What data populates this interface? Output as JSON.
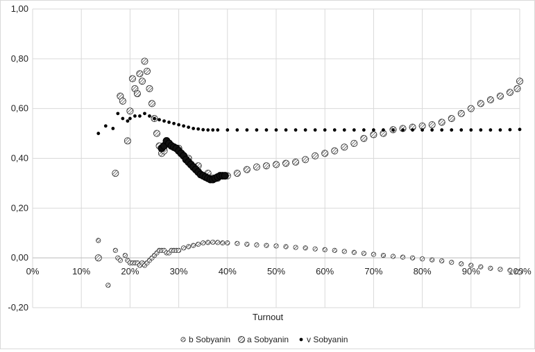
{
  "chart_data": {
    "type": "scatter",
    "title": "",
    "xlabel": "Turnout",
    "ylabel": "",
    "xlim": [
      0,
      1
    ],
    "ylim": [
      -0.2,
      1.0
    ],
    "x_ticks": [
      "0%",
      "10%",
      "20%",
      "30%",
      "40%",
      "50%",
      "60%",
      "70%",
      "80%",
      "90%",
      "100%"
    ],
    "y_ticks": [
      "-0,20",
      "0,00",
      "0,20",
      "0,40",
      "0,60",
      "0,80",
      "1,00"
    ],
    "grid": true,
    "legend_position": "bottom",
    "series": [
      {
        "name": "b Sobyanin",
        "marker": "small-hatched-circle",
        "points": [
          [
            0.135,
            0.07
          ],
          [
            0.155,
            -0.11
          ],
          [
            0.17,
            0.03
          ],
          [
            0.175,
            0.0
          ],
          [
            0.18,
            -0.01
          ],
          [
            0.19,
            0.01
          ],
          [
            0.195,
            -0.01
          ],
          [
            0.2,
            -0.02
          ],
          [
            0.205,
            -0.02
          ],
          [
            0.21,
            -0.02
          ],
          [
            0.215,
            -0.02
          ],
          [
            0.22,
            -0.03
          ],
          [
            0.225,
            -0.02
          ],
          [
            0.23,
            -0.03
          ],
          [
            0.235,
            -0.02
          ],
          [
            0.24,
            -0.01
          ],
          [
            0.245,
            0.0
          ],
          [
            0.25,
            0.01
          ],
          [
            0.255,
            0.02
          ],
          [
            0.26,
            0.03
          ],
          [
            0.265,
            0.03
          ],
          [
            0.27,
            0.03
          ],
          [
            0.275,
            0.02
          ],
          [
            0.28,
            0.02
          ],
          [
            0.285,
            0.03
          ],
          [
            0.29,
            0.03
          ],
          [
            0.295,
            0.03
          ],
          [
            0.3,
            0.03
          ],
          [
            0.31,
            0.04
          ],
          [
            0.32,
            0.045
          ],
          [
            0.33,
            0.05
          ],
          [
            0.34,
            0.055
          ],
          [
            0.35,
            0.06
          ],
          [
            0.36,
            0.062
          ],
          [
            0.37,
            0.063
          ],
          [
            0.38,
            0.062
          ],
          [
            0.39,
            0.06
          ],
          [
            0.4,
            0.06
          ],
          [
            0.42,
            0.058
          ],
          [
            0.44,
            0.055
          ],
          [
            0.46,
            0.052
          ],
          [
            0.48,
            0.05
          ],
          [
            0.5,
            0.048
          ],
          [
            0.52,
            0.045
          ],
          [
            0.54,
            0.042
          ],
          [
            0.56,
            0.04
          ],
          [
            0.58,
            0.036
          ],
          [
            0.6,
            0.033
          ],
          [
            0.62,
            0.03
          ],
          [
            0.64,
            0.026
          ],
          [
            0.66,
            0.022
          ],
          [
            0.68,
            0.018
          ],
          [
            0.7,
            0.014
          ],
          [
            0.72,
            0.01
          ],
          [
            0.74,
            0.006
          ],
          [
            0.76,
            0.003
          ],
          [
            0.78,
            0.0
          ],
          [
            0.8,
            -0.004
          ],
          [
            0.82,
            -0.008
          ],
          [
            0.84,
            -0.012
          ],
          [
            0.86,
            -0.018
          ],
          [
            0.88,
            -0.024
          ],
          [
            0.9,
            -0.03
          ],
          [
            0.92,
            -0.036
          ],
          [
            0.94,
            -0.042
          ],
          [
            0.96,
            -0.046
          ],
          [
            0.98,
            -0.05
          ],
          [
            0.995,
            -0.055
          ],
          [
            1.0,
            -0.058
          ]
        ]
      },
      {
        "name": "a Sobyanin",
        "marker": "large-hatched-circle",
        "points": [
          [
            0.135,
            0.0
          ],
          [
            0.17,
            0.34
          ],
          [
            0.18,
            0.65
          ],
          [
            0.185,
            0.63
          ],
          [
            0.195,
            0.47
          ],
          [
            0.2,
            0.59
          ],
          [
            0.205,
            0.72
          ],
          [
            0.21,
            0.68
          ],
          [
            0.215,
            0.66
          ],
          [
            0.22,
            0.74
          ],
          [
            0.225,
            0.71
          ],
          [
            0.23,
            0.79
          ],
          [
            0.235,
            0.75
          ],
          [
            0.24,
            0.68
          ],
          [
            0.245,
            0.62
          ],
          [
            0.25,
            0.56
          ],
          [
            0.255,
            0.5
          ],
          [
            0.26,
            0.45
          ],
          [
            0.265,
            0.42
          ],
          [
            0.27,
            0.43
          ],
          [
            0.3,
            0.44
          ],
          [
            0.32,
            0.4
          ],
          [
            0.34,
            0.37
          ],
          [
            0.36,
            0.34
          ],
          [
            0.37,
            0.32
          ],
          [
            0.38,
            0.32
          ],
          [
            0.4,
            0.33
          ],
          [
            0.42,
            0.34
          ],
          [
            0.44,
            0.355
          ],
          [
            0.46,
            0.365
          ],
          [
            0.48,
            0.37
          ],
          [
            0.5,
            0.375
          ],
          [
            0.52,
            0.38
          ],
          [
            0.54,
            0.385
          ],
          [
            0.56,
            0.395
          ],
          [
            0.58,
            0.41
          ],
          [
            0.6,
            0.42
          ],
          [
            0.62,
            0.43
          ],
          [
            0.64,
            0.445
          ],
          [
            0.66,
            0.46
          ],
          [
            0.68,
            0.48
          ],
          [
            0.7,
            0.495
          ],
          [
            0.72,
            0.5
          ],
          [
            0.74,
            0.515
          ],
          [
            0.76,
            0.52
          ],
          [
            0.78,
            0.525
          ],
          [
            0.8,
            0.53
          ],
          [
            0.82,
            0.535
          ],
          [
            0.84,
            0.545
          ],
          [
            0.86,
            0.56
          ],
          [
            0.88,
            0.58
          ],
          [
            0.9,
            0.6
          ],
          [
            0.92,
            0.62
          ],
          [
            0.94,
            0.635
          ],
          [
            0.96,
            0.65
          ],
          [
            0.98,
            0.665
          ],
          [
            0.995,
            0.68
          ],
          [
            1.0,
            0.71
          ]
        ]
      },
      {
        "name": "v Sobyanin",
        "marker": "solid-dot",
        "points": [
          [
            0.135,
            0.5
          ],
          [
            0.15,
            0.53
          ],
          [
            0.165,
            0.52
          ],
          [
            0.175,
            0.58
          ],
          [
            0.185,
            0.56
          ],
          [
            0.195,
            0.55
          ],
          [
            0.2,
            0.56
          ],
          [
            0.21,
            0.57
          ],
          [
            0.22,
            0.57
          ],
          [
            0.23,
            0.58
          ],
          [
            0.24,
            0.57
          ],
          [
            0.25,
            0.56
          ],
          [
            0.26,
            0.555
          ],
          [
            0.27,
            0.55
          ],
          [
            0.28,
            0.545
          ],
          [
            0.29,
            0.54
          ],
          [
            0.3,
            0.535
          ],
          [
            0.31,
            0.53
          ],
          [
            0.32,
            0.525
          ],
          [
            0.33,
            0.52
          ],
          [
            0.34,
            0.518
          ],
          [
            0.35,
            0.515
          ],
          [
            0.36,
            0.514
          ],
          [
            0.37,
            0.514
          ],
          [
            0.38,
            0.514
          ],
          [
            0.4,
            0.514
          ],
          [
            0.42,
            0.514
          ],
          [
            0.44,
            0.514
          ],
          [
            0.46,
            0.514
          ],
          [
            0.48,
            0.514
          ],
          [
            0.5,
            0.514
          ],
          [
            0.52,
            0.514
          ],
          [
            0.54,
            0.514
          ],
          [
            0.56,
            0.514
          ],
          [
            0.58,
            0.514
          ],
          [
            0.6,
            0.514
          ],
          [
            0.62,
            0.514
          ],
          [
            0.64,
            0.514
          ],
          [
            0.66,
            0.514
          ],
          [
            0.68,
            0.514
          ],
          [
            0.7,
            0.514
          ],
          [
            0.72,
            0.514
          ],
          [
            0.74,
            0.514
          ],
          [
            0.76,
            0.514
          ],
          [
            0.78,
            0.514
          ],
          [
            0.8,
            0.514
          ],
          [
            0.82,
            0.514
          ],
          [
            0.84,
            0.514
          ],
          [
            0.86,
            0.514
          ],
          [
            0.88,
            0.514
          ],
          [
            0.9,
            0.514
          ],
          [
            0.92,
            0.514
          ],
          [
            0.94,
            0.514
          ],
          [
            0.96,
            0.514
          ],
          [
            0.98,
            0.515
          ],
          [
            1.0,
            0.516
          ]
        ]
      },
      {
        "name": "",
        "marker": "dense-cluster",
        "points": [
          [
            0.265,
            0.44
          ],
          [
            0.27,
            0.45
          ],
          [
            0.275,
            0.47
          ],
          [
            0.28,
            0.46
          ],
          [
            0.285,
            0.45
          ],
          [
            0.29,
            0.445
          ],
          [
            0.295,
            0.44
          ],
          [
            0.3,
            0.43
          ],
          [
            0.305,
            0.42
          ],
          [
            0.31,
            0.41
          ],
          [
            0.315,
            0.395
          ],
          [
            0.32,
            0.385
          ],
          [
            0.325,
            0.375
          ],
          [
            0.33,
            0.365
          ],
          [
            0.335,
            0.355
          ],
          [
            0.34,
            0.345
          ],
          [
            0.345,
            0.335
          ],
          [
            0.35,
            0.33
          ],
          [
            0.355,
            0.325
          ],
          [
            0.36,
            0.32
          ],
          [
            0.365,
            0.315
          ],
          [
            0.37,
            0.315
          ],
          [
            0.375,
            0.32
          ],
          [
            0.38,
            0.325
          ],
          [
            0.385,
            0.33
          ],
          [
            0.39,
            0.33
          ],
          [
            0.395,
            0.33
          ]
        ]
      }
    ]
  }
}
